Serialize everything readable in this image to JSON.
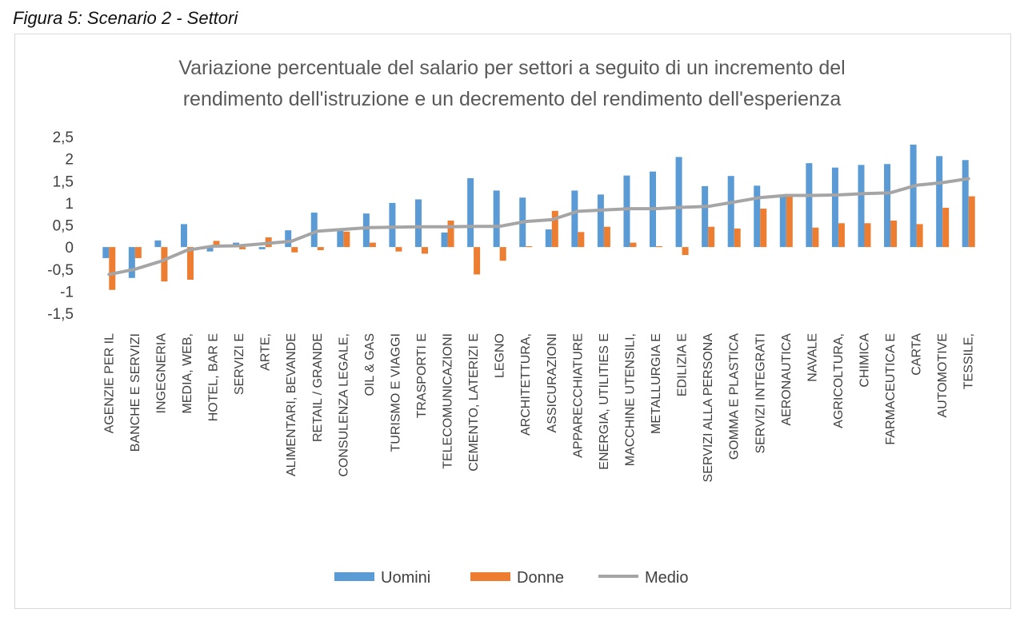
{
  "caption": "Figura 5: Scenario 2 - Settori",
  "colors": {
    "uomini": "#5b9bd5",
    "donne": "#ed7d31",
    "medio": "#a5a5a5"
  },
  "chart_data": {
    "type": "bar",
    "title": [
      "Variazione percentuale del salario per settori a seguito di un incremento del",
      "rendimento dell'istruzione e un decremento del rendimento dell'esperienza"
    ],
    "ylim": [
      -1.5,
      2.5
    ],
    "yticks": [
      "2,5",
      "2",
      "1,5",
      "1",
      "0,5",
      "0",
      "-0,5",
      "-1",
      "-1,5"
    ],
    "ytick_values": [
      2.5,
      2,
      1.5,
      1,
      0.5,
      0,
      -0.5,
      -1,
      -1.5
    ],
    "grid": false,
    "legend_position": "bottom",
    "categories": [
      "AGENZIE PER IL",
      "BANCHE E SERVIZI",
      "INGEGNERIA",
      "MEDIA, WEB,",
      "HOTEL, BAR E",
      "SERVIZI E",
      "ARTE,",
      "ALIMENTARI, BEVANDE",
      "RETAIL / GRANDE",
      "CONSULENZA LEGALE,",
      "OIL & GAS",
      "TURISMO E VIAGGI",
      "TRASPORTI E",
      "TELECOMUNICAZIONI",
      "CEMENTO, LATERIZI E",
      "LEGNO",
      "ARCHITETTURA,",
      "ASSICURAZIONI",
      "APPARECCHIATURE",
      "ENERGIA, UTILITIES E",
      "MACCHINE UTENSILI,",
      "METALLURGIA E",
      "EDILIZIA E",
      "SERVIZI ALLA PERSONA",
      "GOMMA E PLASTICA",
      "SERVIZI INTEGRATI",
      "AERONAUTICA",
      "NAVALE",
      "AGRICOLTURA,",
      "CHIMICA",
      "FARMACEUTICA E",
      "CARTA",
      "AUTOMOTIVE",
      "TESSILE,"
    ],
    "series": [
      {
        "name": "Uomini",
        "kind": "bar",
        "values": [
          -0.25,
          -0.7,
          0.15,
          0.52,
          -0.1,
          0.1,
          -0.05,
          0.38,
          0.78,
          0.38,
          0.76,
          1.0,
          1.08,
          0.33,
          1.56,
          1.28,
          1.12,
          0.4,
          1.28,
          1.19,
          1.62,
          1.71,
          2.04,
          1.38,
          1.61,
          1.39,
          1.16,
          1.9,
          1.8,
          1.86,
          1.88,
          2.32,
          2.06,
          1.97
        ]
      },
      {
        "name": "Donne",
        "kind": "bar",
        "values": [
          -0.97,
          -0.25,
          -0.78,
          -0.74,
          0.14,
          -0.05,
          0.22,
          -0.12,
          -0.07,
          0.35,
          0.1,
          -0.1,
          -0.15,
          0.6,
          -0.62,
          -0.31,
          0.02,
          0.82,
          0.34,
          0.46,
          0.1,
          0.02,
          -0.18,
          0.46,
          0.42,
          0.87,
          1.15,
          0.44,
          0.54,
          0.54,
          0.6,
          0.52,
          0.89,
          1.15
        ]
      },
      {
        "name": "Medio",
        "kind": "line",
        "values": [
          -0.62,
          -0.5,
          -0.32,
          -0.07,
          0.02,
          0.03,
          0.08,
          0.13,
          0.36,
          0.4,
          0.44,
          0.45,
          0.46,
          0.46,
          0.47,
          0.47,
          0.58,
          0.62,
          0.81,
          0.84,
          0.87,
          0.87,
          0.9,
          0.92,
          1.02,
          1.12,
          1.17,
          1.17,
          1.18,
          1.21,
          1.23,
          1.4,
          1.46,
          1.55
        ]
      }
    ]
  },
  "legend": {
    "uomini": "Uomini",
    "donne": "Donne",
    "medio": "Medio"
  }
}
